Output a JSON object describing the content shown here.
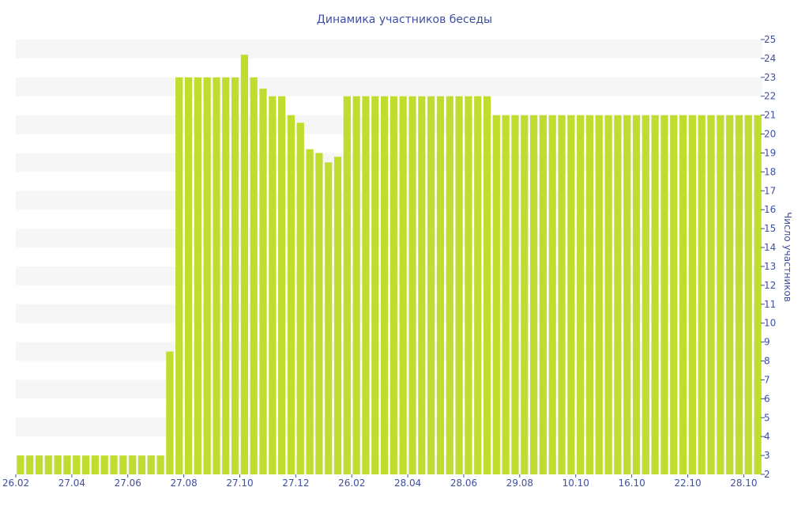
{
  "chart_data": {
    "type": "bar",
    "title": "Динамика участников беседы",
    "xlabel": "",
    "ylabel": "Число участников",
    "ylim": [
      2,
      25
    ],
    "y_ticks": [
      2,
      3,
      4,
      5,
      6,
      7,
      8,
      9,
      10,
      11,
      12,
      13,
      14,
      15,
      16,
      17,
      18,
      19,
      20,
      21,
      22,
      23,
      24,
      25
    ],
    "y_axis_side": "right",
    "grid": "alternating horizontal bands",
    "bar_color": "#c0dd2f",
    "band_color": "#f6f6f6",
    "text_color": "#3f4fa0",
    "x_tick_labels": [
      {
        "index": 0,
        "label": "26.02"
      },
      {
        "index": 6,
        "label": "27.04"
      },
      {
        "index": 12,
        "label": "27.06"
      },
      {
        "index": 18,
        "label": "27.08"
      },
      {
        "index": 24,
        "label": "27.10"
      },
      {
        "index": 30,
        "label": "27.12"
      },
      {
        "index": 36,
        "label": "26.02"
      },
      {
        "index": 42,
        "label": "28.04"
      },
      {
        "index": 48,
        "label": "28.06"
      },
      {
        "index": 54,
        "label": "29.08"
      },
      {
        "index": 60,
        "label": "10.10"
      },
      {
        "index": 66,
        "label": "16.10"
      },
      {
        "index": 72,
        "label": "22.10"
      },
      {
        "index": 78,
        "label": "28.10"
      }
    ],
    "values": [
      3,
      3,
      3,
      3,
      3,
      3,
      3,
      3,
      3,
      3,
      3,
      3,
      3,
      3,
      3,
      3,
      8.5,
      23,
      23,
      23,
      23,
      23,
      23,
      23,
      24.2,
      23,
      22.4,
      22,
      22,
      21,
      20.6,
      19.2,
      19,
      18.5,
      18.8,
      22,
      22,
      22,
      22,
      22,
      22,
      22,
      22,
      22,
      22,
      22,
      22,
      22,
      22,
      22,
      22,
      21,
      21,
      21,
      21,
      21,
      21,
      21,
      21,
      21,
      21,
      21,
      21,
      21,
      21,
      21,
      21,
      21,
      21,
      21,
      21,
      21,
      21,
      21,
      21,
      21,
      21,
      21,
      21,
      21
    ]
  }
}
